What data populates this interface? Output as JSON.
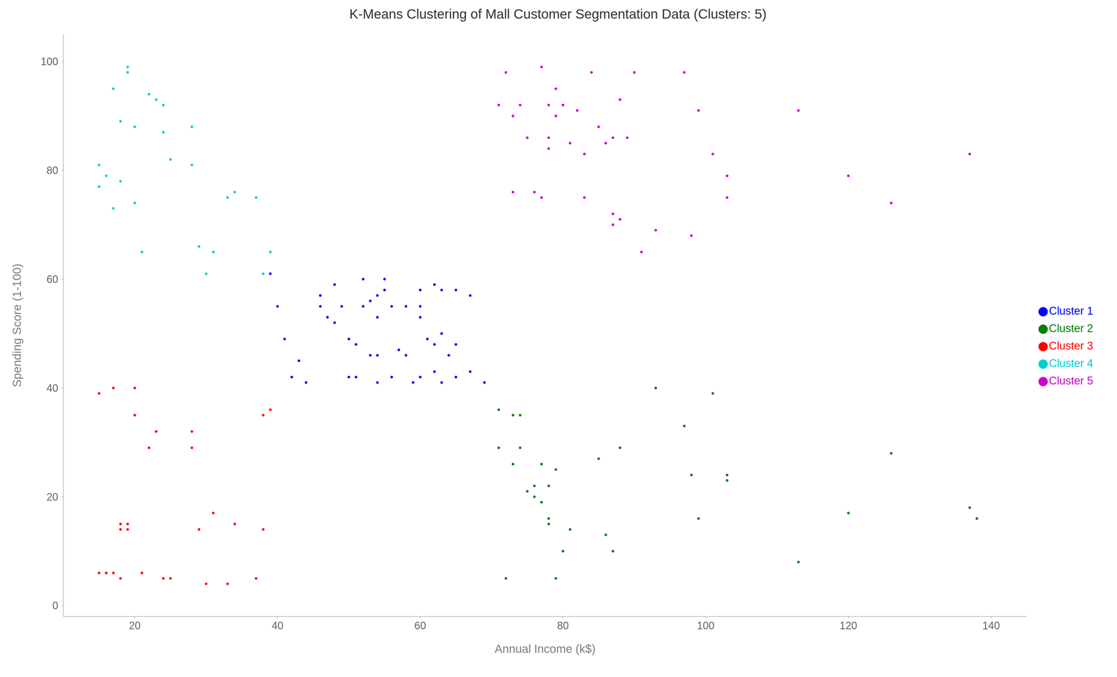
{
  "chart_data": {
    "type": "scatter",
    "title": "K-Means Clustering of Mall Customer Segmentation Data (Clusters: 5)",
    "xlabel": "Annual Income (k$)",
    "ylabel": "Spending Score (1-100)",
    "xlim": [
      10,
      145
    ],
    "ylim": [
      -2,
      105
    ],
    "xticks": [
      20,
      40,
      60,
      80,
      100,
      120,
      140
    ],
    "yticks": [
      0,
      20,
      40,
      60,
      80,
      100
    ],
    "grid": false,
    "legend": "right",
    "series": [
      {
        "name": "Cluster 1",
        "color": "#0000FF",
        "x": [
          39,
          40,
          41,
          42,
          43,
          44,
          46,
          46,
          47,
          48,
          48,
          49,
          50,
          50,
          51,
          51,
          52,
          52,
          53,
          53,
          54,
          54,
          54,
          54,
          55,
          55,
          56,
          56,
          57,
          58,
          58,
          59,
          60,
          60,
          60,
          60,
          61,
          62,
          62,
          62,
          63,
          63,
          63,
          64,
          65,
          65,
          65,
          67,
          67,
          69
        ],
        "y": [
          61,
          55,
          49,
          42,
          45,
          41,
          55,
          57,
          53,
          52,
          59,
          55,
          42,
          49,
          48,
          42,
          55,
          60,
          46,
          56,
          41,
          46,
          53,
          57,
          58,
          60,
          42,
          55,
          47,
          46,
          55,
          41,
          42,
          53,
          55,
          58,
          49,
          43,
          48,
          59,
          41,
          50,
          58,
          46,
          42,
          48,
          58,
          43,
          57,
          41
        ]
      },
      {
        "name": "Cluster 2",
        "color": "#008000",
        "x": [
          71,
          71,
          72,
          73,
          73,
          74,
          74,
          75,
          76,
          76,
          77,
          77,
          78,
          78,
          78,
          79,
          79,
          80,
          81,
          85,
          86,
          87,
          88,
          93,
          97,
          98,
          99,
          101,
          103,
          103,
          113,
          120,
          126,
          137,
          138
        ],
        "y": [
          36,
          29,
          5,
          35,
          26,
          29,
          35,
          21,
          20,
          22,
          19,
          26,
          15,
          16,
          22,
          5,
          25,
          10,
          14,
          27,
          13,
          10,
          29,
          40,
          33,
          24,
          16,
          39,
          23,
          24,
          8,
          17,
          28,
          18,
          16
        ]
      },
      {
        "name": "Cluster 3",
        "color": "#FF0000",
        "x": [
          15,
          15,
          16,
          17,
          17,
          18,
          18,
          18,
          19,
          19,
          20,
          20,
          20,
          21,
          22,
          23,
          24,
          25,
          28,
          28,
          29,
          30,
          31,
          33,
          34,
          37,
          38,
          38,
          39
        ],
        "y": [
          39,
          6,
          6,
          40,
          6,
          14,
          5,
          15,
          14,
          15,
          35,
          35,
          40,
          6,
          29,
          32,
          5,
          5,
          29,
          32,
          14,
          4,
          17,
          4,
          15,
          5,
          14,
          35,
          36
        ]
      },
      {
        "name": "Cluster 4",
        "color": "#00CED1",
        "x": [
          15,
          15,
          16,
          17,
          17,
          18,
          18,
          19,
          19,
          20,
          20,
          21,
          22,
          23,
          24,
          24,
          25,
          28,
          28,
          29,
          30,
          31,
          33,
          34,
          37,
          38,
          39
        ],
        "y": [
          81,
          77,
          79,
          73,
          95,
          89,
          78,
          99,
          98,
          88,
          74,
          65,
          94,
          93,
          87,
          92,
          82,
          88,
          81,
          66,
          61,
          65,
          75,
          76,
          75,
          61,
          65
        ]
      },
      {
        "name": "Cluster 5",
        "color": "#CC00CC",
        "x": [
          71,
          72,
          73,
          73,
          74,
          75,
          76,
          77,
          77,
          78,
          78,
          78,
          79,
          79,
          80,
          81,
          82,
          83,
          83,
          84,
          85,
          86,
          87,
          87,
          87,
          88,
          88,
          89,
          90,
          91,
          93,
          97,
          98,
          99,
          101,
          103,
          103,
          113,
          120,
          126,
          137
        ],
        "y": [
          92,
          98,
          90,
          76,
          92,
          86,
          76,
          75,
          99,
          92,
          86,
          84,
          90,
          95,
          92,
          85,
          91,
          83,
          75,
          98,
          88,
          85,
          70,
          86,
          72,
          71,
          93,
          86,
          98,
          65,
          69,
          98,
          68,
          91,
          83,
          75,
          79,
          91,
          79,
          74,
          83
        ]
      }
    ]
  }
}
